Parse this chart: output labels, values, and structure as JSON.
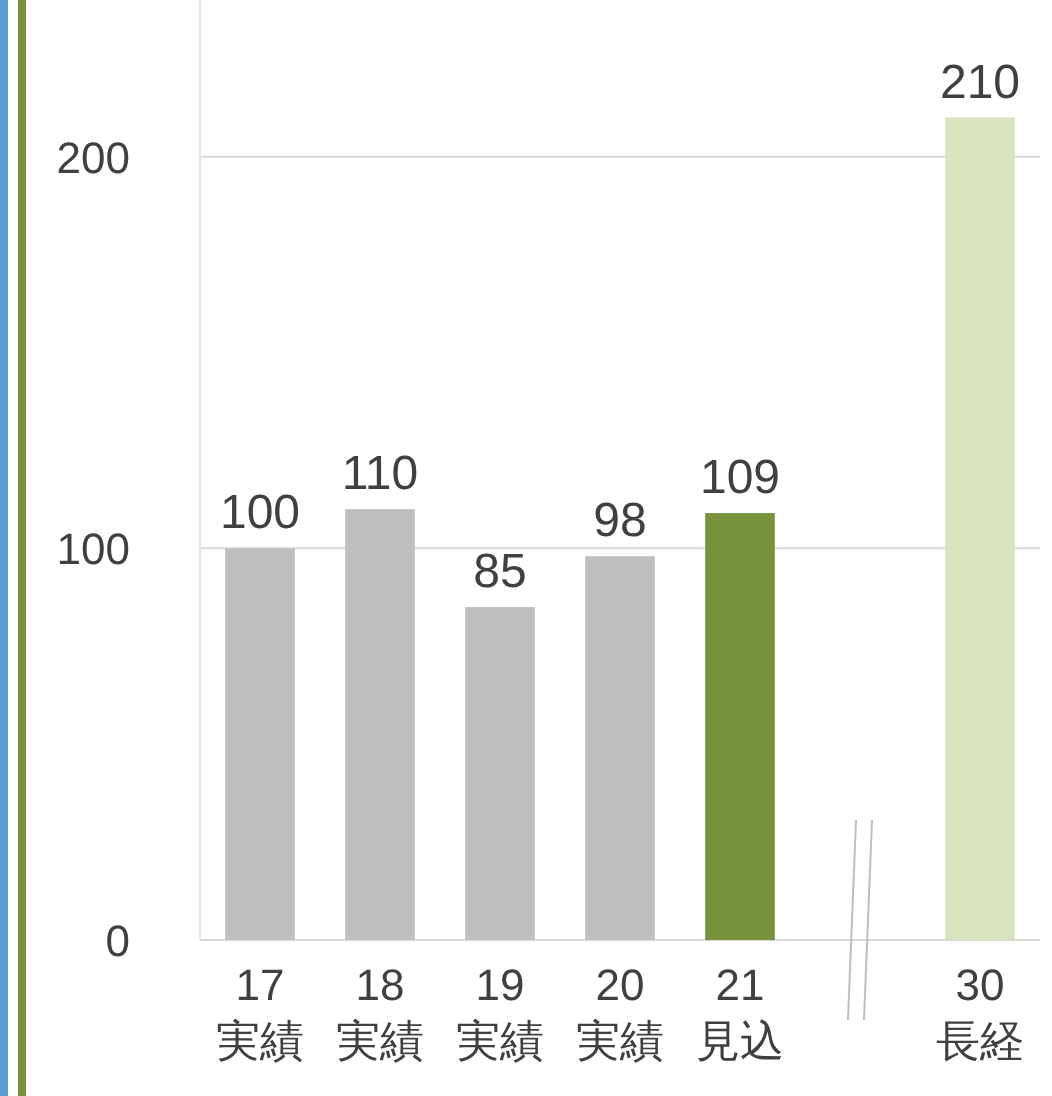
{
  "chart_data": {
    "type": "bar",
    "categories": [
      "17\n実績",
      "18\n実績",
      "19\n実績",
      "20\n実績",
      "21\n見込",
      null,
      "30\n長経"
    ],
    "values": [
      100,
      110,
      85,
      98,
      109,
      null,
      210
    ],
    "colors": [
      "#bfbfbf",
      "#bfbfbf",
      "#bfbfbf",
      "#bfbfbf",
      "#76923c",
      null,
      "#d7e4bd"
    ],
    "ylim": [
      0,
      240
    ],
    "yticks": [
      0,
      100,
      200
    ],
    "grid": "y",
    "data_labels": true
  }
}
